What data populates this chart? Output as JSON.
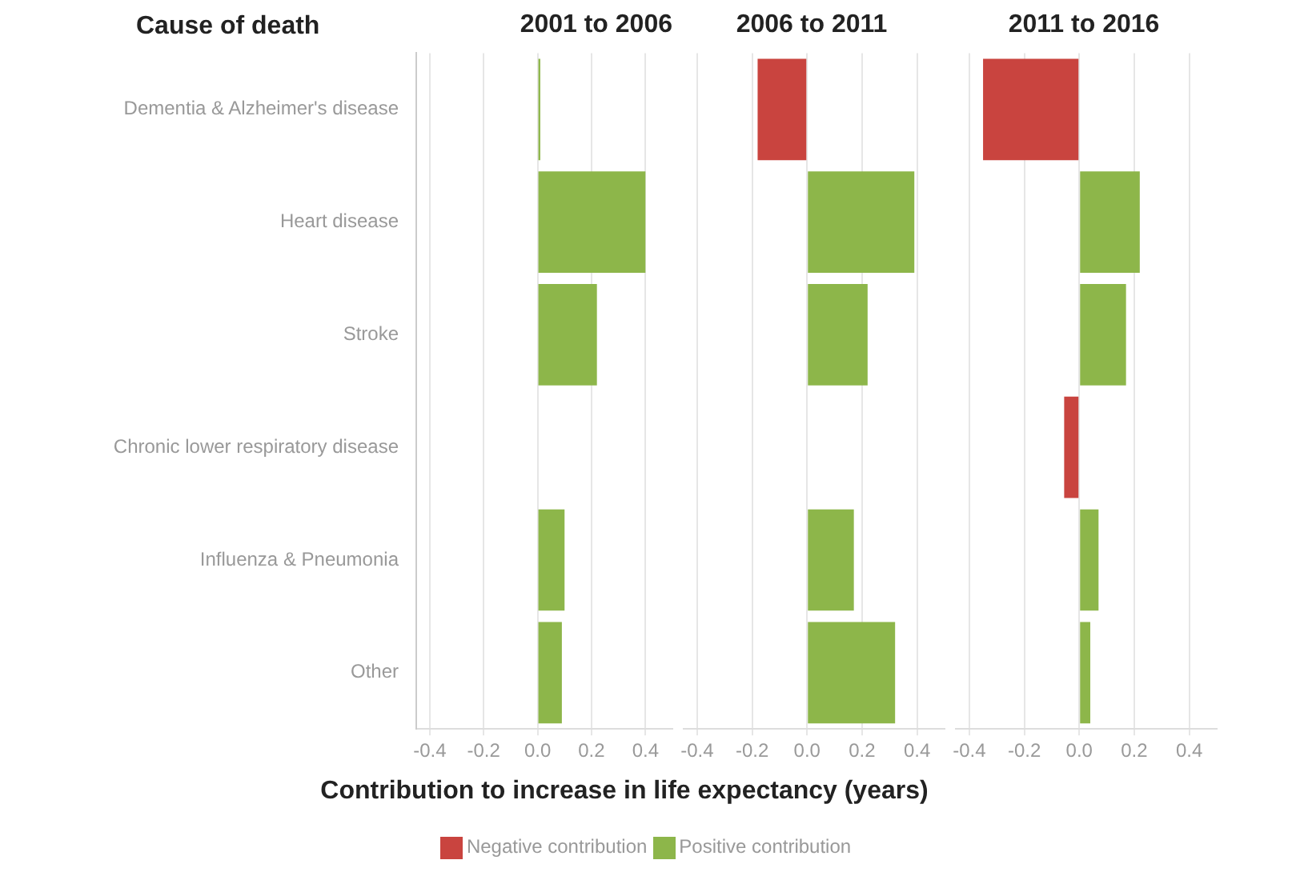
{
  "chart_data": [
    {
      "type": "bar",
      "orientation": "horizontal",
      "stacked": true,
      "title": "2001 to 2006",
      "ylabel": "Cause of death",
      "categories": [
        "Dementia & Alzheimer's disease",
        "Heart disease",
        "Stroke",
        "Chronic lower respiratory disease",
        "Influenza & Pneumonia",
        "Other"
      ],
      "series": [
        {
          "color": "#c9443f",
          "values": [
            null,
            null,
            null,
            null,
            null,
            null
          ]
        },
        {
          "color": "#8db64a",
          "values": [
            0.01,
            0.4,
            0.22,
            null,
            0.1,
            0.09
          ]
        }
      ],
      "xlim": [
        -0.45,
        0.5
      ],
      "xticks": [
        {
          "value": -0.4,
          "label": "-0.4"
        },
        {
          "value": -0.2,
          "label": "-0.2"
        },
        {
          "value": 0,
          "label": "0.0"
        },
        {
          "value": 0.2,
          "label": "0.2"
        },
        {
          "value": 0.4,
          "label": "0.4"
        }
      ],
      "grid": "x"
    },
    {
      "type": "bar",
      "orientation": "horizontal",
      "stacked": true,
      "title": "2006 to 2011",
      "xlabel": "Contribution to increase in life expectancy (years)",
      "legend": "bottom",
      "tick_labels": "x",
      "categories": [
        null,
        null,
        null,
        null,
        null,
        null
      ],
      "series": [
        {
          "name": "Negative contribution",
          "color": "#c9443f",
          "values": [
            -0.18,
            null,
            null,
            null,
            null,
            null
          ]
        },
        {
          "name": "Positive contribution",
          "color": "#8db64a",
          "values": [
            null,
            0.39,
            0.22,
            null,
            0.17,
            0.32
          ]
        }
      ],
      "xlim": [
        -0.45,
        0.5
      ],
      "xticks": [
        {
          "value": -0.4,
          "label": "-0.4"
        },
        {
          "value": -0.2,
          "label": "-0.2"
        },
        {
          "value": 0,
          "label": "0.0"
        },
        {
          "value": 0.2,
          "label": "0.2"
        },
        {
          "value": 0.4,
          "label": "0.4"
        }
      ],
      "grid": "x"
    },
    {
      "type": "bar",
      "orientation": "horizontal",
      "stacked": true,
      "title": "2011 to 2016",
      "tick_labels": "x",
      "categories": [
        null,
        null,
        null,
        null,
        null,
        null
      ],
      "series": [
        {
          "color": "#c9443f",
          "values": [
            -0.35,
            null,
            null,
            -0.055,
            null,
            null
          ]
        },
        {
          "color": "#8db64a",
          "values": [
            null,
            0.22,
            0.17,
            null,
            0.07,
            0.04
          ]
        }
      ],
      "xlim": [
        -0.45,
        0.5
      ],
      "xticks": [
        {
          "value": -0.4,
          "label": "-0.4"
        },
        {
          "value": -0.2,
          "label": "-0.2"
        },
        {
          "value": 0,
          "label": "0.0"
        },
        {
          "value": 0.2,
          "label": "0.2"
        },
        {
          "value": 0.4,
          "label": "0.4"
        }
      ],
      "grid": "x"
    }
  ]
}
